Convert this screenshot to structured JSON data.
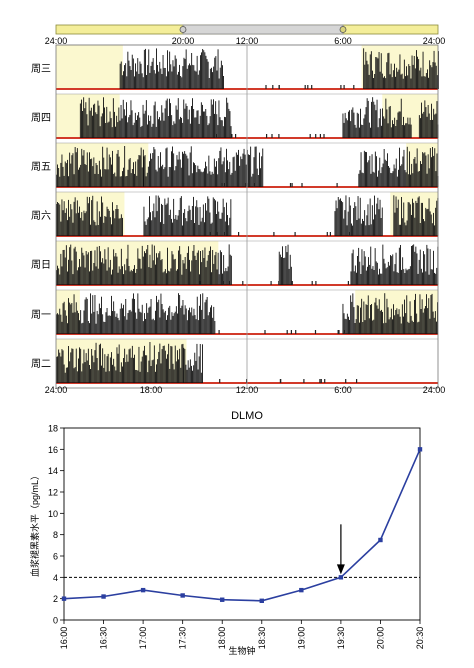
{
  "actogram": {
    "top_axis_labels": [
      "24:00",
      "20:00",
      "12:00",
      "6:00",
      "24:00"
    ],
    "bottom_axis_labels": [
      "24:00",
      "18:00",
      "12:00",
      "6:00",
      "24:00"
    ],
    "rows": [
      {
        "day": "周三",
        "light_intervals": [
          [
            0,
            4.2
          ],
          [
            19.2,
            24
          ]
        ],
        "activity_intervals": [
          [
            4.0,
            10.5
          ],
          [
            19.3,
            24
          ]
        ]
      },
      {
        "day": "周四",
        "light_intervals": [
          [
            0,
            4.0
          ],
          [
            20.5,
            24
          ]
        ],
        "activity_intervals": [
          [
            1.5,
            11.0
          ],
          [
            18.0,
            22.3
          ],
          [
            22.8,
            24
          ]
        ]
      },
      {
        "day": "周五",
        "light_intervals": [
          [
            0,
            5.8
          ],
          [
            22.0,
            24
          ]
        ],
        "activity_intervals": [
          [
            0,
            5.5
          ],
          [
            5.5,
            13.0
          ],
          [
            19.0,
            24
          ]
        ]
      },
      {
        "day": "周六",
        "light_intervals": [
          [
            0,
            4.3
          ],
          [
            21.0,
            24
          ]
        ],
        "activity_intervals": [
          [
            0,
            4.2
          ],
          [
            5.5,
            11.0
          ],
          [
            17.5,
            20.5
          ],
          [
            21.2,
            24
          ]
        ]
      },
      {
        "day": "周日",
        "light_intervals": [
          [
            0,
            10.2
          ]
        ],
        "activity_intervals": [
          [
            0,
            11.0
          ],
          [
            14.0,
            14.8
          ],
          [
            18.5,
            24
          ]
        ]
      },
      {
        "day": "周一",
        "light_intervals": [
          [
            0,
            1.5
          ],
          [
            18.8,
            24
          ]
        ],
        "activity_intervals": [
          [
            0,
            10.0
          ],
          [
            18.0,
            24
          ]
        ]
      },
      {
        "day": "周二",
        "light_intervals": [
          [
            0,
            8.2
          ]
        ],
        "activity_intervals": [
          [
            0,
            8.0
          ],
          [
            8.0,
            9.2
          ]
        ]
      }
    ]
  },
  "chart_data": {
    "type": "line",
    "title": "DLMO",
    "xlabel": "生物钟",
    "ylabel": "血浆褪黑素水平（pg/mL）",
    "categories": [
      "16:00",
      "16:30",
      "17:00",
      "17:30",
      "18:00",
      "18:30",
      "19:00",
      "19:30",
      "20:00",
      "20:30"
    ],
    "values": [
      2.0,
      2.2,
      2.8,
      2.3,
      1.9,
      1.8,
      2.8,
      4.0,
      7.5,
      16.0
    ],
    "ylim": [
      0,
      18
    ],
    "yticks": [
      0,
      2,
      4,
      6,
      8,
      10,
      12,
      14,
      16,
      18
    ],
    "threshold": 4,
    "arrow_at": "19:30",
    "series_color": "#2b3fa0",
    "grid": false
  }
}
